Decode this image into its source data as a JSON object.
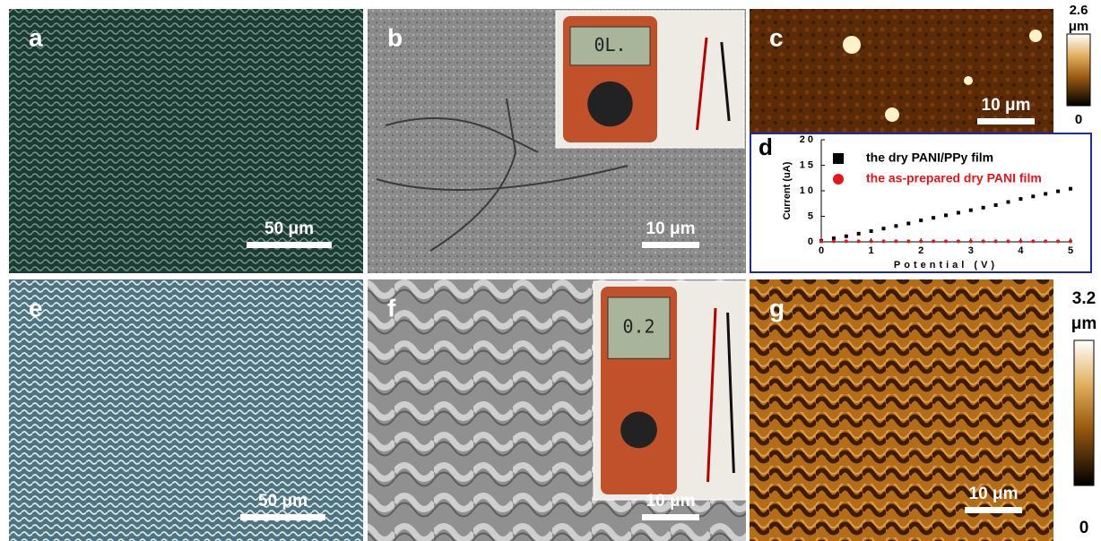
{
  "panels": [
    {
      "label": "a",
      "scale_bar": "50 μm"
    },
    {
      "label": "b",
      "scale_bar": "10 μm",
      "inset_display": "0L."
    },
    {
      "label": "c",
      "scale_bar": "10 μm",
      "colorbar": {
        "max": "2.6",
        "unit": "μm",
        "min": "0"
      }
    },
    {
      "label": "d"
    },
    {
      "label": "e",
      "scale_bar": "50 μm"
    },
    {
      "label": "f",
      "scale_bar": "10 μm",
      "inset_display": "0.2"
    },
    {
      "label": "g",
      "scale_bar": "10 μm",
      "colorbar": {
        "max": "3.2",
        "unit": "μm",
        "min": "0"
      }
    }
  ],
  "chart_data": {
    "type": "scatter",
    "x_label": "Potential (V)",
    "y_label": "Current (uA)",
    "xlim": [
      0,
      5
    ],
    "xticks": [
      0,
      1,
      2,
      3,
      4,
      5
    ],
    "ylim": [
      0,
      20
    ],
    "yticks": [
      0,
      5,
      10,
      15,
      20
    ],
    "x": [
      0,
      0.25,
      0.5,
      0.75,
      1,
      1.25,
      1.5,
      1.75,
      2,
      2.25,
      2.5,
      2.75,
      3,
      3.25,
      3.5,
      3.75,
      4,
      4.25,
      4.5,
      4.75,
      5
    ],
    "series": [
      {
        "name": "the dry PANI/PPy film",
        "color": "#000000",
        "marker": "square",
        "values": [
          0.2,
          0.7,
          1.1,
          1.6,
          2.1,
          2.6,
          3.1,
          3.6,
          4.2,
          4.7,
          5.2,
          5.7,
          6.2,
          6.7,
          7.2,
          7.8,
          8.4,
          8.9,
          9.4,
          9.9,
          10.4
        ]
      },
      {
        "name": "the as-prepared dry PANI film",
        "color": "#e8141b",
        "marker": "circle",
        "values": [
          0.1,
          0.1,
          0.1,
          0.1,
          0.1,
          0.1,
          0.1,
          0.1,
          0.1,
          0.1,
          0.1,
          0.1,
          0.1,
          0.1,
          0.1,
          0.1,
          0.1,
          0.1,
          0.1,
          0.1,
          0.1
        ]
      }
    ]
  }
}
